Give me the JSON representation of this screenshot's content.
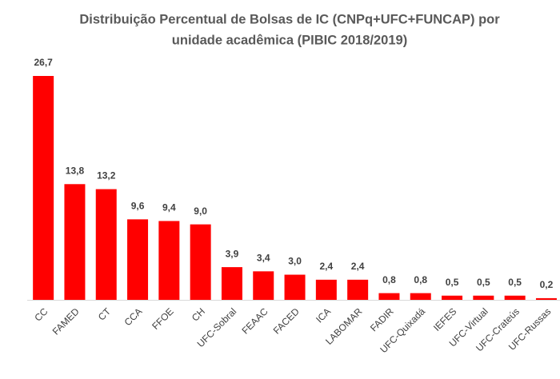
{
  "chart_data": {
    "type": "bar",
    "title": [
      "Distribuição Percentual de Bolsas de IC (CNPq+UFC+FUNCAP) por",
      "unidade acadêmica  (PIBIC 2018/2019)"
    ],
    "categories": [
      "CC",
      "FAMED",
      "CT",
      "CCA",
      "FFOE",
      "CH",
      "UFC-Sobral",
      "FEAAC",
      "FACED",
      "ICA",
      "LABOMAR",
      "FADIR",
      "UFC-Quixadá",
      "IEFES",
      "UFC-Virtual",
      "UFC-Crateús",
      "UFC-Russas"
    ],
    "values": [
      26.7,
      13.8,
      13.2,
      9.6,
      9.4,
      9.0,
      3.9,
      3.4,
      3.0,
      2.4,
      2.4,
      0.8,
      0.8,
      0.5,
      0.5,
      0.5,
      0.2
    ],
    "value_labels": [
      "26,7",
      "13,8",
      "13,2",
      "9,6",
      "9,4",
      "9,0",
      "3,9",
      "3,4",
      "3,0",
      "2,4",
      "2,4",
      "0,8",
      "0,8",
      "0,5",
      "0,5",
      "0,5",
      "0,2"
    ],
    "color": "#ff0000"
  }
}
